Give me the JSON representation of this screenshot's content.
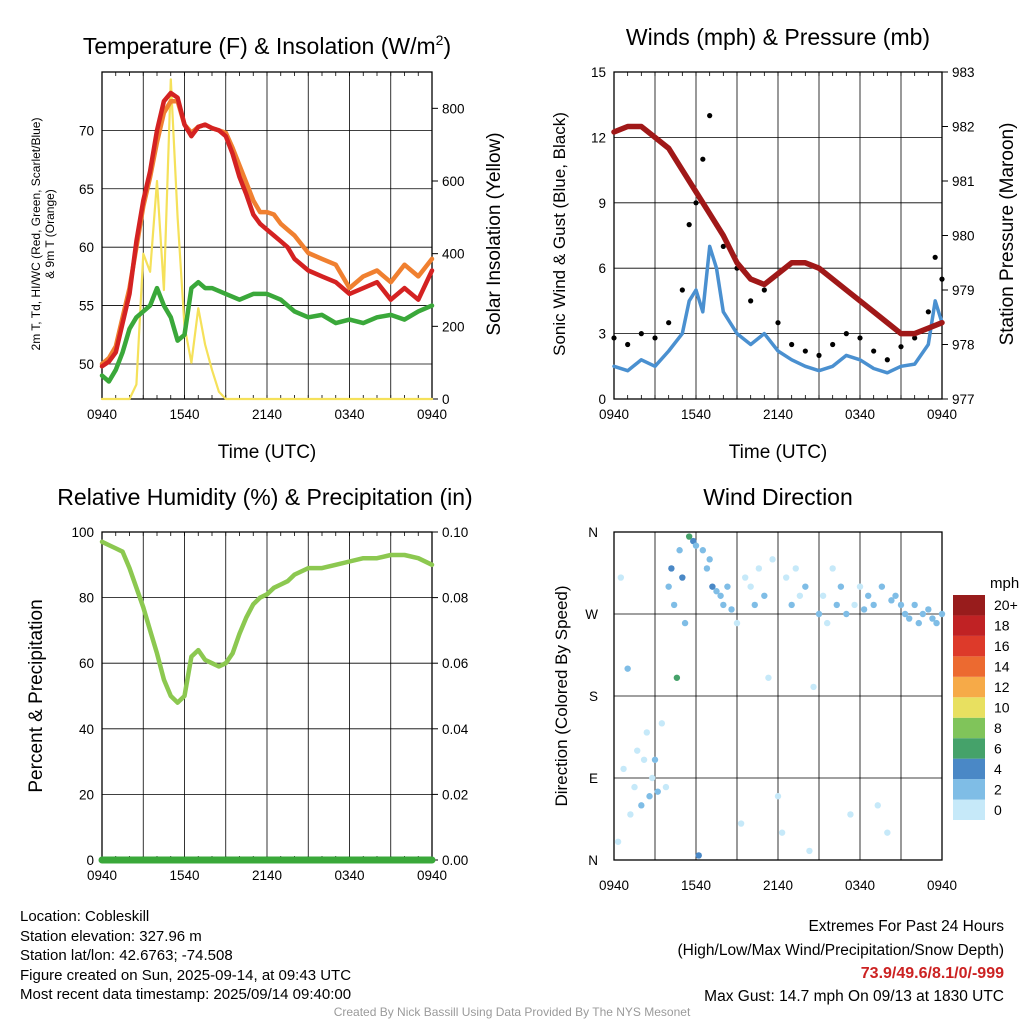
{
  "panels": {
    "temp": {
      "title_main": "Temperature (F) & Insolation (W/m",
      "title_sup": "2",
      "title_end": ")",
      "ylabel_left_line1": "2m T, Td, HI/WC (Red, Green, Scarlet/Blue)",
      "ylabel_left_line2": "& 9m T (Orange)",
      "ylabel_right": "Solar Insolation (Yellow)",
      "xlabel": "Time (UTC)"
    },
    "wind": {
      "title": "Winds (mph) & Pressure (mb)",
      "ylabel_left": "Sonic Wind & Gust (Blue, Black)",
      "ylabel_right": "Station Pressure (Maroon)",
      "xlabel": "Time (UTC)"
    },
    "rh": {
      "title": "Relative Humidity (%) & Precipitation (in)",
      "ylabel_left": "Percent & Precipitation"
    },
    "dir": {
      "title": "Wind Direction",
      "ylabel_left": "Direction (Colored By Speed)",
      "colorbar_title": "mph"
    }
  },
  "info": {
    "location": "Location: Cobleskill",
    "elevation": "Station elevation: 327.96 m",
    "latlon": "Station lat/lon: 42.6763; -74.508",
    "created": "Figure created on Sun, 2025-09-14, at 09:43 UTC",
    "recent": "Most recent data timestamp: 2025/09/14 09:40:00"
  },
  "extremes": {
    "heading": "Extremes For Past 24 Hours",
    "fields": "(High/Low/Max Wind/Precipitation/Snow Depth)",
    "values": "73.9/49.6/8.1/0/-999",
    "max_gust": "Max Gust: 14.7 mph On 09/13 at 1830 UTC"
  },
  "credit": "Created By Nick Bassill Using Data Provided By The NYS Mesonet",
  "colors": {
    "temp_2m": "#d42222",
    "temp_9m": "#f08030",
    "dewpoint": "#3aa83a",
    "insolation": "#f5e15a",
    "wind": "#4a90d0",
    "gust": "#000000",
    "pressure": "#a01818",
    "rh": "#8cc850",
    "precip": "#3aa83a"
  },
  "chart_data": [
    {
      "type": "line",
      "title": "Temperature (F) & Insolation (W/m2)",
      "xlabel": "Time (UTC)",
      "x_ticks": [
        "0940",
        "1540",
        "2140",
        "0340",
        "0940"
      ],
      "xlim_hours": [
        0,
        24
      ],
      "ylim_left": [
        47,
        75
      ],
      "y_ticks_left": [
        "50",
        "55",
        "60",
        "65",
        "70"
      ],
      "ylim_right": [
        0,
        900
      ],
      "y_ticks_right": [
        "0",
        "200",
        "400",
        "600",
        "800"
      ],
      "series": [
        {
          "name": "2m T",
          "axis": "left",
          "x": [
            0,
            0.5,
            1,
            1.5,
            2,
            2.5,
            3,
            3.5,
            4,
            4.5,
            5,
            5.5,
            6,
            6.5,
            7,
            7.5,
            8,
            8.5,
            9,
            9.5,
            10,
            10.5,
            11,
            11.5,
            12,
            12.5,
            13,
            13.5,
            14,
            15,
            16,
            17,
            18,
            19,
            20,
            21,
            22,
            23,
            24
          ],
          "y": [
            49.8,
            50.2,
            51,
            53.5,
            56,
            60.5,
            64,
            66.5,
            70,
            72.5,
            73.2,
            72.8,
            70.5,
            69.5,
            70.3,
            70.5,
            70.2,
            70,
            69.5,
            68,
            66,
            64.5,
            62.8,
            62,
            61.5,
            61,
            60.5,
            60,
            59,
            58,
            57.5,
            57,
            56,
            56.5,
            57,
            55.5,
            56.5,
            55.5,
            58
          ]
        },
        {
          "name": "9m T",
          "axis": "left",
          "x": [
            0,
            0.5,
            1,
            1.5,
            2,
            2.5,
            3,
            3.5,
            4,
            4.5,
            5,
            5.5,
            6,
            6.5,
            7,
            7.5,
            8,
            8.5,
            9,
            9.5,
            10,
            10.5,
            11,
            11.5,
            12,
            12.5,
            13,
            13.5,
            14,
            15,
            16,
            17,
            18,
            19,
            20,
            21,
            22,
            23,
            24
          ],
          "y": [
            50,
            50.5,
            51.5,
            54,
            56.5,
            60,
            63.5,
            66,
            69,
            71.5,
            72.5,
            72.5,
            70.5,
            69.8,
            70.3,
            70.5,
            70.2,
            70,
            69.8,
            68.5,
            67,
            65.5,
            64,
            63,
            63,
            62.8,
            62,
            61.5,
            61,
            59.5,
            59,
            58.5,
            56.5,
            57.5,
            58,
            57,
            58.5,
            57.5,
            59
          ]
        },
        {
          "name": "Td",
          "axis": "left",
          "x": [
            0,
            0.5,
            1,
            1.5,
            2,
            2.5,
            3,
            3.5,
            4,
            4.5,
            5,
            5.5,
            6,
            6.5,
            7,
            7.5,
            8,
            9,
            10,
            11,
            12,
            13,
            14,
            15,
            16,
            17,
            18,
            19,
            20,
            21,
            22,
            23,
            24
          ],
          "y": [
            49,
            48.5,
            49.5,
            51,
            53,
            54,
            54.5,
            55,
            56.5,
            55,
            54,
            52,
            52.5,
            56.5,
            57,
            56.5,
            56.5,
            56,
            55.5,
            56,
            56,
            55.5,
            54.5,
            54,
            54.2,
            53.5,
            53.8,
            53.5,
            54,
            54.2,
            53.8,
            54.5,
            55
          ]
        },
        {
          "name": "Solar Insolation",
          "axis": "right",
          "x": [
            0,
            1,
            1.5,
            2,
            2.5,
            3,
            3.5,
            4,
            4.5,
            5,
            5.5,
            6,
            6.5,
            7,
            7.5,
            8,
            8.5,
            9,
            10,
            11,
            12,
            13,
            14,
            15,
            16,
            17,
            18,
            19,
            20,
            21,
            22,
            23,
            24
          ],
          "y": [
            0,
            0,
            0,
            0,
            40,
            400,
            350,
            600,
            300,
            880,
            500,
            200,
            100,
            250,
            150,
            80,
            20,
            0,
            0,
            0,
            0,
            0,
            0,
            0,
            0,
            0,
            0,
            0,
            0,
            0,
            0,
            0,
            0
          ]
        }
      ]
    },
    {
      "type": "line",
      "title": "Winds (mph) & Pressure (mb)",
      "xlabel": "Time (UTC)",
      "x_ticks": [
        "0940",
        "1540",
        "2140",
        "0340",
        "0940"
      ],
      "xlim_hours": [
        0,
        24
      ],
      "ylim_left": [
        0,
        15
      ],
      "y_ticks_left": [
        "0",
        "3",
        "6",
        "9",
        "12",
        "15"
      ],
      "ylim_right": [
        977,
        983
      ],
      "y_ticks_right": [
        "977",
        "978",
        "979",
        "980",
        "981",
        "982",
        "983"
      ],
      "series": [
        {
          "name": "Sonic Wind",
          "axis": "left",
          "x": [
            0,
            1,
            2,
            3,
            4,
            5,
            5.5,
            6,
            6.5,
            7,
            7.5,
            8,
            9,
            10,
            11,
            12,
            13,
            14,
            15,
            16,
            17,
            18,
            19,
            20,
            21,
            22,
            23,
            23.5,
            24
          ],
          "y": [
            1.5,
            1.3,
            1.8,
            1.5,
            2.2,
            3,
            4.5,
            5,
            4,
            7,
            6,
            4,
            3,
            2.5,
            3,
            2.2,
            1.8,
            1.5,
            1.3,
            1.5,
            2,
            1.8,
            1.4,
            1.2,
            1.5,
            1.6,
            2.5,
            4.5,
            3.5
          ]
        },
        {
          "name": "Gust",
          "axis": "left",
          "x": [
            0,
            1,
            2,
            3,
            4,
            5,
            5.5,
            6,
            6.5,
            7,
            7.5,
            8,
            9,
            10,
            11,
            12,
            13,
            14,
            15,
            16,
            17,
            18,
            19,
            20,
            21,
            22,
            23,
            23.5,
            24
          ],
          "y": [
            2.8,
            2.5,
            3,
            2.8,
            3.5,
            5,
            8,
            9,
            11,
            13,
            8,
            7,
            6,
            4.5,
            5,
            3.5,
            2.5,
            2.2,
            2,
            2.5,
            3,
            2.8,
            2.2,
            1.8,
            2.4,
            2.8,
            4,
            6.5,
            5.5
          ]
        },
        {
          "name": "Station Pressure",
          "axis": "right",
          "x": [
            0,
            1,
            2,
            3,
            4,
            5,
            6,
            7,
            8,
            9,
            10,
            11,
            12,
            13,
            14,
            15,
            16,
            17,
            18,
            19,
            20,
            21,
            22,
            23,
            24
          ],
          "y": [
            981.9,
            982,
            982,
            981.8,
            981.6,
            981.2,
            980.8,
            980.4,
            980,
            979.5,
            979.2,
            979.1,
            979.3,
            979.5,
            979.5,
            979.4,
            979.2,
            979,
            978.8,
            978.6,
            978.4,
            978.2,
            978.2,
            978.3,
            978.4
          ]
        }
      ]
    },
    {
      "type": "line",
      "title": "Relative Humidity (%) & Precipitation (in)",
      "x_ticks": [
        "0940",
        "1540",
        "2140",
        "0340",
        "0940"
      ],
      "xlim_hours": [
        0,
        24
      ],
      "ylim_left": [
        0,
        100
      ],
      "y_ticks_left": [
        "0",
        "20",
        "40",
        "60",
        "80",
        "100"
      ],
      "ylim_right": [
        0,
        0.1
      ],
      "y_ticks_right": [
        "0.00",
        "0.02",
        "0.04",
        "0.06",
        "0.08",
        "0.10"
      ],
      "series": [
        {
          "name": "Relative Humidity",
          "axis": "left",
          "x": [
            0,
            0.5,
            1,
            1.5,
            2,
            2.5,
            3,
            3.5,
            4,
            4.5,
            5,
            5.5,
            6,
            6.5,
            7,
            7.5,
            8,
            8.5,
            9,
            9.5,
            10,
            10.5,
            11,
            11.5,
            12,
            12.5,
            13,
            13.5,
            14,
            15,
            16,
            17,
            18,
            19,
            20,
            21,
            22,
            23,
            24
          ],
          "y": [
            97,
            96,
            95,
            94,
            89,
            83,
            77,
            70,
            63,
            55,
            50,
            48,
            50,
            62,
            64,
            61,
            60,
            59,
            60,
            63,
            69,
            74,
            78,
            80,
            81,
            83,
            84,
            85,
            87,
            89,
            89,
            90,
            91,
            92,
            92,
            93,
            93,
            92,
            90
          ]
        },
        {
          "name": "Precipitation",
          "axis": "right",
          "x": [
            0,
            24
          ],
          "y": [
            0,
            0
          ]
        }
      ]
    },
    {
      "type": "scatter",
      "title": "Wind Direction",
      "ylabel": "Direction (Colored By Speed)",
      "x_ticks": [
        "0940",
        "1540",
        "2140",
        "0340",
        "0940"
      ],
      "xlim_hours": [
        0,
        24
      ],
      "y_ticks": [
        "N",
        "E",
        "S",
        "W",
        "N"
      ],
      "ylim_degrees": [
        0,
        360
      ],
      "colorbar_labels": [
        "0",
        "2",
        "4",
        "6",
        "8",
        "10",
        "12",
        "14",
        "16",
        "18",
        "20+"
      ],
      "colorbar_colors": [
        "#c6e9f9",
        "#7fbde6",
        "#4a88c6",
        "#45a26a",
        "#80c45a",
        "#e8e060",
        "#f6aa48",
        "#ec6a30",
        "#dd3a2a",
        "#c02224",
        "#981c1c"
      ],
      "points": [
        [
          0.3,
          20,
          1
        ],
        [
          0.5,
          310,
          0.5
        ],
        [
          0.7,
          100,
          1
        ],
        [
          1,
          210,
          2
        ],
        [
          1.2,
          50,
          1
        ],
        [
          1.5,
          80,
          0.5
        ],
        [
          1.7,
          120,
          1
        ],
        [
          2,
          60,
          2
        ],
        [
          2.2,
          110,
          1
        ],
        [
          2.4,
          140,
          1
        ],
        [
          2.6,
          70,
          2
        ],
        [
          2.8,
          90,
          1
        ],
        [
          3,
          110,
          2
        ],
        [
          3.2,
          75,
          2
        ],
        [
          3.5,
          150,
          1
        ],
        [
          3.8,
          80,
          1
        ],
        [
          4,
          300,
          2
        ],
        [
          4.2,
          320,
          4
        ],
        [
          4.4,
          280,
          3
        ],
        [
          4.6,
          200,
          6
        ],
        [
          4.8,
          340,
          3
        ],
        [
          5,
          310,
          4
        ],
        [
          5.2,
          260,
          2
        ],
        [
          5.5,
          355,
          6
        ],
        [
          5.8,
          350,
          4
        ],
        [
          6,
          345,
          3
        ],
        [
          6.2,
          5,
          4
        ],
        [
          6.5,
          340,
          3
        ],
        [
          6.8,
          320,
          3
        ],
        [
          7,
          330,
          3
        ],
        [
          7.2,
          300,
          4
        ],
        [
          7.5,
          295,
          3
        ],
        [
          7.8,
          290,
          2
        ],
        [
          8,
          280,
          3
        ],
        [
          8.3,
          300,
          2
        ],
        [
          8.6,
          275,
          3
        ],
        [
          9,
          260,
          1
        ],
        [
          9.3,
          40,
          1
        ],
        [
          9.6,
          310,
          1
        ],
        [
          10,
          300,
          1
        ],
        [
          10.3,
          280,
          2
        ],
        [
          10.6,
          320,
          1
        ],
        [
          11,
          290,
          2
        ],
        [
          11.3,
          200,
          1
        ],
        [
          11.6,
          330,
          1
        ],
        [
          12,
          70,
          1
        ],
        [
          12.3,
          30,
          1
        ],
        [
          12.6,
          310,
          1
        ],
        [
          13,
          280,
          2
        ],
        [
          13.3,
          320,
          1
        ],
        [
          13.6,
          290,
          1
        ],
        [
          14,
          300,
          2
        ],
        [
          14.3,
          10,
          1
        ],
        [
          14.6,
          190,
          1
        ],
        [
          15,
          270,
          2
        ],
        [
          15.3,
          290,
          1
        ],
        [
          15.6,
          260,
          1
        ],
        [
          16,
          320,
          1
        ],
        [
          16.3,
          280,
          2
        ],
        [
          16.6,
          300,
          2
        ],
        [
          17,
          270,
          2
        ],
        [
          17.3,
          50,
          1
        ],
        [
          17.6,
          280,
          1
        ],
        [
          18,
          300,
          1
        ],
        [
          18.3,
          275,
          3
        ],
        [
          18.6,
          290,
          2
        ],
        [
          19,
          280,
          2
        ],
        [
          19.3,
          60,
          1
        ],
        [
          19.6,
          300,
          2
        ],
        [
          20,
          30,
          1
        ],
        [
          20.3,
          285,
          2
        ],
        [
          20.6,
          290,
          2
        ],
        [
          21,
          280,
          3
        ],
        [
          21.3,
          270,
          2
        ],
        [
          21.6,
          265,
          3
        ],
        [
          22,
          280,
          3
        ],
        [
          22.3,
          260,
          3
        ],
        [
          22.6,
          270,
          3
        ],
        [
          23,
          275,
          3
        ],
        [
          23.3,
          265,
          3
        ],
        [
          23.6,
          260,
          3
        ],
        [
          24,
          270,
          3
        ]
      ]
    }
  ]
}
